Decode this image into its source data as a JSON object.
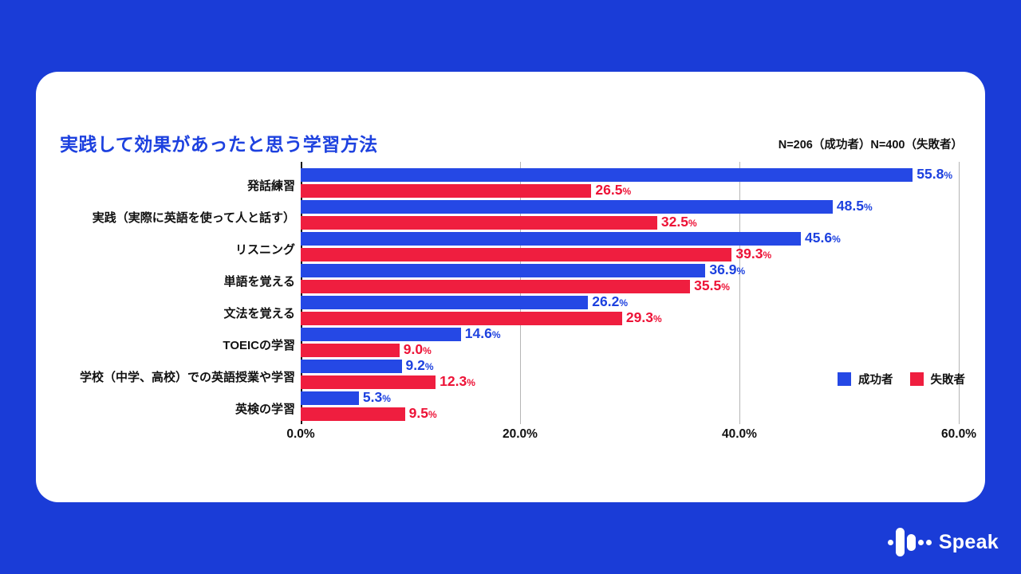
{
  "title": "実践して効果があったと思う学習方法",
  "sample_note": "N=206（成功者）N=400（失敗者）",
  "colors": {
    "background": "#1a3cd7",
    "card": "#ffffff",
    "title": "#1d41df",
    "success_bar": "#2548e5",
    "failure_bar": "#ef1e3f",
    "gridline": "#b5b5b5",
    "axis": "#1a1a1a"
  },
  "chart_data": {
    "type": "bar",
    "orientation": "horizontal",
    "title": "実践して効果があったと思う学習方法",
    "xlabel": "",
    "ylabel": "",
    "xlim": [
      0,
      60
    ],
    "grid": true,
    "legend_position": "right-middle",
    "categories": [
      "発話練習",
      "実践（実際に英語を使って人と話す）",
      "リスニング",
      "単語を覚える",
      "文法を覚える",
      "TOEICの学習",
      "学校（中学、高校）での英語授業や学習",
      "英検の学習"
    ],
    "series": [
      {
        "name": "成功者",
        "color": "#2548e5",
        "values": [
          55.8,
          48.5,
          45.6,
          36.9,
          26.2,
          14.6,
          9.2,
          5.3
        ]
      },
      {
        "name": "失敗者",
        "color": "#ef1e3f",
        "values": [
          26.5,
          32.5,
          39.3,
          35.5,
          29.3,
          9.0,
          12.3,
          9.5
        ]
      }
    ],
    "x_ticks": [
      {
        "value": 0,
        "label": "0.0%"
      },
      {
        "value": 20,
        "label": "20.0%"
      },
      {
        "value": 40,
        "label": "40.0%"
      },
      {
        "value": 60,
        "label": "60.0%"
      }
    ],
    "value_suffix": "%"
  },
  "legend": [
    {
      "label": "成功者",
      "color": "#2548e5"
    },
    {
      "label": "失敗者",
      "color": "#ef1e3f"
    }
  ],
  "logo": {
    "text": "Speak"
  }
}
